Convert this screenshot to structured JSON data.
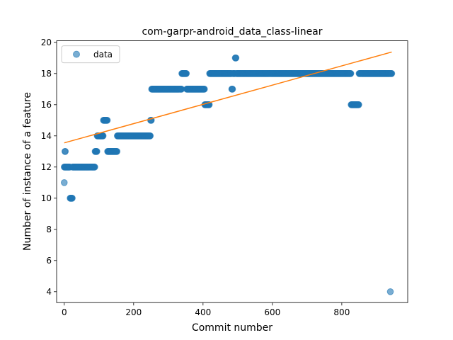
{
  "chart_data": {
    "type": "scatter",
    "title": "com-garpr-android_data_class-linear",
    "xlabel": "Commit number",
    "ylabel": "Number of instance of a feature",
    "xlim": [
      -22,
      990
    ],
    "ylim": [
      3.3,
      20.1
    ],
    "xticks": [
      0,
      200,
      400,
      600,
      800
    ],
    "yticks": [
      4,
      6,
      8,
      10,
      12,
      14,
      16,
      18,
      20
    ],
    "grid": false,
    "legend": {
      "placement": "upper-left",
      "entries": [
        "data"
      ]
    },
    "colors": {
      "points": "#1f77b4",
      "fit_line": "#ff7f0e"
    },
    "series": [
      {
        "name": "data",
        "kind": "points",
        "segments": [
          {
            "x_start": 0,
            "x_end": 0,
            "y": 11
          },
          {
            "x_start": 0,
            "x_end": 2,
            "y": 12
          },
          {
            "x_start": 2,
            "x_end": 3,
            "y": 13
          },
          {
            "x_start": 3,
            "x_end": 16,
            "y": 12
          },
          {
            "x_start": 17,
            "x_end": 23,
            "y": 10
          },
          {
            "x_start": 24,
            "x_end": 88,
            "y": 12
          },
          {
            "x_start": 89,
            "x_end": 94,
            "y": 13
          },
          {
            "x_start": 95,
            "x_end": 112,
            "y": 14
          },
          {
            "x_start": 113,
            "x_end": 124,
            "y": 15
          },
          {
            "x_start": 125,
            "x_end": 152,
            "y": 13
          },
          {
            "x_start": 153,
            "x_end": 248,
            "y": 14
          },
          {
            "x_start": 249,
            "x_end": 251,
            "y": 15
          },
          {
            "x_start": 252,
            "x_end": 338,
            "y": 17
          },
          {
            "x_start": 339,
            "x_end": 352,
            "y": 18
          },
          {
            "x_start": 353,
            "x_end": 404,
            "y": 17
          },
          {
            "x_start": 405,
            "x_end": 418,
            "y": 16
          },
          {
            "x_start": 419,
            "x_end": 482,
            "y": 18
          },
          {
            "x_start": 483,
            "x_end": 485,
            "y": 17
          },
          {
            "x_start": 486,
            "x_end": 492,
            "y": 18
          },
          {
            "x_start": 493,
            "x_end": 495,
            "y": 19
          },
          {
            "x_start": 496,
            "x_end": 826,
            "y": 18
          },
          {
            "x_start": 827,
            "x_end": 849,
            "y": 16
          },
          {
            "x_start": 850,
            "x_end": 939,
            "y": 18
          },
          {
            "x_start": 940,
            "x_end": 940,
            "y": 4
          },
          {
            "x_start": 941,
            "x_end": 944,
            "y": 18
          }
        ]
      },
      {
        "name": "",
        "kind": "line",
        "x": [
          0,
          944
        ],
        "y": [
          13.55,
          19.38
        ]
      }
    ]
  }
}
